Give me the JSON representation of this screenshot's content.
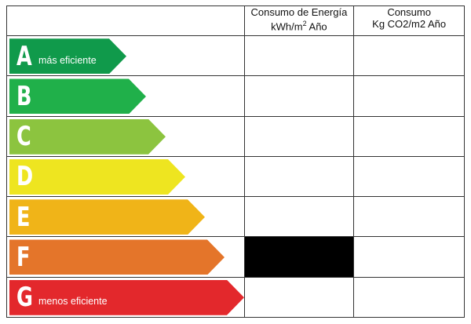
{
  "header": {
    "energy_line1": "Consumo de Energía",
    "energy_line2": "kWh/m",
    "energy_sup": "2",
    "energy_line2_tail": " Año",
    "co2_line1": "Consumo",
    "co2_line2": "Kg CO2/m2 Año"
  },
  "ratings": [
    {
      "letter": "A",
      "note": "más eficiente",
      "color": "#109a4b"
    },
    {
      "letter": "B",
      "note": "",
      "color": "#20b04a"
    },
    {
      "letter": "C",
      "note": "",
      "color": "#8cc43f"
    },
    {
      "letter": "D",
      "note": "",
      "color": "#eee520"
    },
    {
      "letter": "E",
      "note": "",
      "color": "#f0b418"
    },
    {
      "letter": "F",
      "note": "",
      "color": "#e4752a"
    },
    {
      "letter": "G",
      "note": "menos eficiente",
      "color": "#e3282c"
    }
  ],
  "marked_rating": "F"
}
